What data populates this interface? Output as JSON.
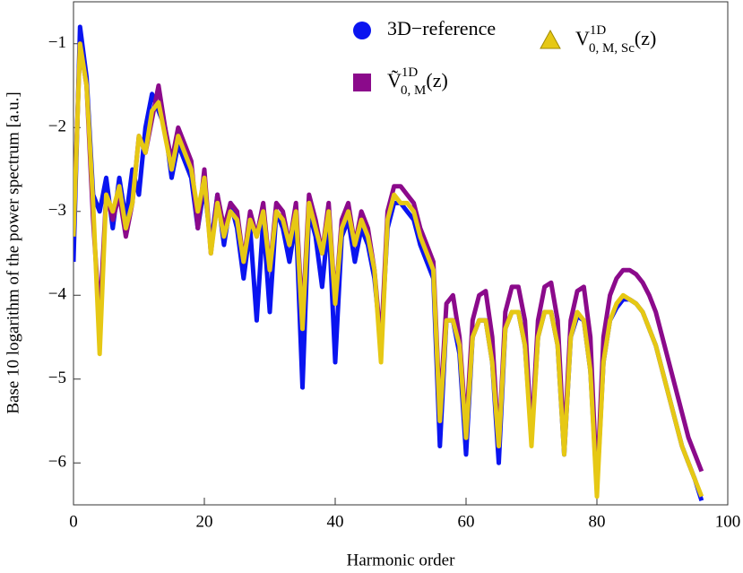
{
  "chart_data": {
    "type": "line",
    "xlabel": "Harmonic order",
    "ylabel": "Base 10 logarithm of the power spectrum  [a.u.]",
    "x": [
      0,
      1,
      2,
      3,
      4,
      5,
      6,
      7,
      8,
      9,
      10,
      11,
      12,
      13,
      14,
      15,
      16,
      17,
      18,
      19,
      20,
      21,
      22,
      23,
      24,
      25,
      26,
      27,
      28,
      29,
      30,
      31,
      32,
      33,
      34,
      35,
      36,
      37,
      38,
      39,
      40,
      41,
      42,
      43,
      44,
      45,
      46,
      47,
      48,
      49,
      50,
      51,
      52,
      53,
      54,
      55,
      56,
      57,
      58,
      59,
      60,
      61,
      62,
      63,
      64,
      65,
      66,
      67,
      68,
      69,
      70,
      71,
      72,
      73,
      74,
      75,
      76,
      77,
      78,
      79,
      80,
      81,
      82,
      83,
      84,
      85,
      86,
      87,
      88,
      89,
      90,
      91,
      92,
      93,
      94,
      95,
      96
    ],
    "series": [
      {
        "name": "3D−reference",
        "marker": "circle",
        "color": "#0a14f0",
        "values": [
          -3.6,
          -0.8,
          -1.4,
          -2.8,
          -3.0,
          -2.6,
          -3.2,
          -2.6,
          -3.1,
          -2.5,
          -2.8,
          -2.0,
          -1.6,
          -1.8,
          -2.0,
          -2.6,
          -2.2,
          -2.4,
          -2.6,
          -3.2,
          -2.7,
          -3.4,
          -2.8,
          -3.4,
          -2.9,
          -3.2,
          -3.8,
          -3.2,
          -4.3,
          -3.1,
          -4.2,
          -3.0,
          -3.2,
          -3.6,
          -3.1,
          -5.1,
          -3.0,
          -3.3,
          -3.9,
          -3.1,
          -4.8,
          -3.3,
          -3.1,
          -3.6,
          -3.2,
          -3.4,
          -3.8,
          -4.6,
          -3.2,
          -2.9,
          -2.9,
          -3.0,
          -3.1,
          -3.4,
          -3.6,
          -3.8,
          -5.8,
          -4.3,
          -4.3,
          -4.7,
          -5.9,
          -4.5,
          -4.3,
          -4.3,
          -4.8,
          -6.0,
          -4.4,
          -4.2,
          -4.2,
          -4.6,
          -5.7,
          -4.5,
          -4.2,
          -4.2,
          -4.6,
          -5.9,
          -4.5,
          -4.25,
          -4.3,
          -4.9,
          -6.3,
          -4.8,
          -4.3,
          -4.15,
          -4.05,
          -4.05,
          -4.1,
          -4.2,
          -4.4,
          -4.6,
          -4.9,
          -5.2,
          -5.5,
          -5.8,
          -6.0,
          -6.2,
          -6.45
        ]
      },
      {
        "name": "Ṽ",
        "sub": "0, M",
        "sup": "1D",
        "tail": "(z)",
        "marker": "square",
        "color": "#8b0a8b",
        "values": [
          -3.2,
          -1.0,
          -1.5,
          -3.1,
          -4.3,
          -2.8,
          -3.1,
          -2.8,
          -3.3,
          -2.9,
          -2.1,
          -2.3,
          -1.9,
          -1.5,
          -2.0,
          -2.4,
          -2.0,
          -2.2,
          -2.4,
          -3.2,
          -2.5,
          -3.5,
          -2.8,
          -3.2,
          -2.9,
          -3.0,
          -3.6,
          -3.0,
          -3.3,
          -2.9,
          -3.7,
          -2.9,
          -3.0,
          -3.4,
          -2.9,
          -4.3,
          -2.8,
          -3.1,
          -3.5,
          -2.9,
          -4.1,
          -3.1,
          -2.9,
          -3.4,
          -3.0,
          -3.2,
          -3.7,
          -4.6,
          -3.0,
          -2.7,
          -2.7,
          -2.8,
          -2.9,
          -3.2,
          -3.4,
          -3.6,
          -5.4,
          -4.1,
          -4.0,
          -4.5,
          -5.6,
          -4.3,
          -4.0,
          -3.95,
          -4.5,
          -5.8,
          -4.2,
          -3.9,
          -3.9,
          -4.3,
          -5.7,
          -4.3,
          -3.9,
          -3.85,
          -4.3,
          -5.8,
          -4.3,
          -3.95,
          -3.9,
          -4.5,
          -6.3,
          -4.5,
          -4.0,
          -3.8,
          -3.7,
          -3.7,
          -3.75,
          -3.85,
          -4.0,
          -4.2,
          -4.5,
          -4.8,
          -5.1,
          -5.4,
          -5.7,
          -5.9,
          -6.1
        ]
      },
      {
        "name": "V",
        "sub": "0, M, Sc",
        "sup": "1D",
        "tail": "(z)",
        "marker": "triangle",
        "color": "#e6c814",
        "values": [
          -3.3,
          -1.0,
          -1.5,
          -2.9,
          -4.7,
          -2.8,
          -3.0,
          -2.7,
          -3.2,
          -2.9,
          -2.1,
          -2.3,
          -1.8,
          -1.7,
          -2.1,
          -2.5,
          -2.1,
          -2.3,
          -2.5,
          -3.0,
          -2.6,
          -3.5,
          -2.9,
          -3.3,
          -3.0,
          -3.1,
          -3.6,
          -3.1,
          -3.3,
          -3.0,
          -3.7,
          -3.0,
          -3.1,
          -3.4,
          -3.0,
          -4.4,
          -2.9,
          -3.2,
          -3.5,
          -3.0,
          -4.1,
          -3.2,
          -3.0,
          -3.4,
          -3.1,
          -3.3,
          -3.7,
          -4.8,
          -3.1,
          -2.8,
          -2.9,
          -2.9,
          -3.0,
          -3.3,
          -3.5,
          -3.7,
          -5.5,
          -4.3,
          -4.3,
          -4.6,
          -5.7,
          -4.5,
          -4.3,
          -4.3,
          -4.8,
          -5.8,
          -4.4,
          -4.2,
          -4.2,
          -4.6,
          -5.8,
          -4.5,
          -4.2,
          -4.2,
          -4.6,
          -5.9,
          -4.5,
          -4.2,
          -4.3,
          -4.9,
          -6.4,
          -4.8,
          -4.3,
          -4.1,
          -4.0,
          -4.05,
          -4.1,
          -4.2,
          -4.4,
          -4.6,
          -4.9,
          -5.2,
          -5.5,
          -5.8,
          -6.0,
          -6.2,
          -6.4
        ]
      }
    ],
    "xlim": [
      0,
      100
    ],
    "xticks": [
      0,
      20,
      40,
      60,
      80,
      100
    ],
    "ylim": [
      -6.5,
      -0.5
    ],
    "yticks": [
      {
        "value": -6,
        "label": "−6"
      },
      {
        "value": -5,
        "label": "−5"
      },
      {
        "value": -4,
        "label": "−4"
      },
      {
        "value": -3,
        "label": "−3"
      },
      {
        "value": -2,
        "label": "−2"
      },
      {
        "value": -1,
        "label": "−1"
      }
    ],
    "grid": false
  }
}
